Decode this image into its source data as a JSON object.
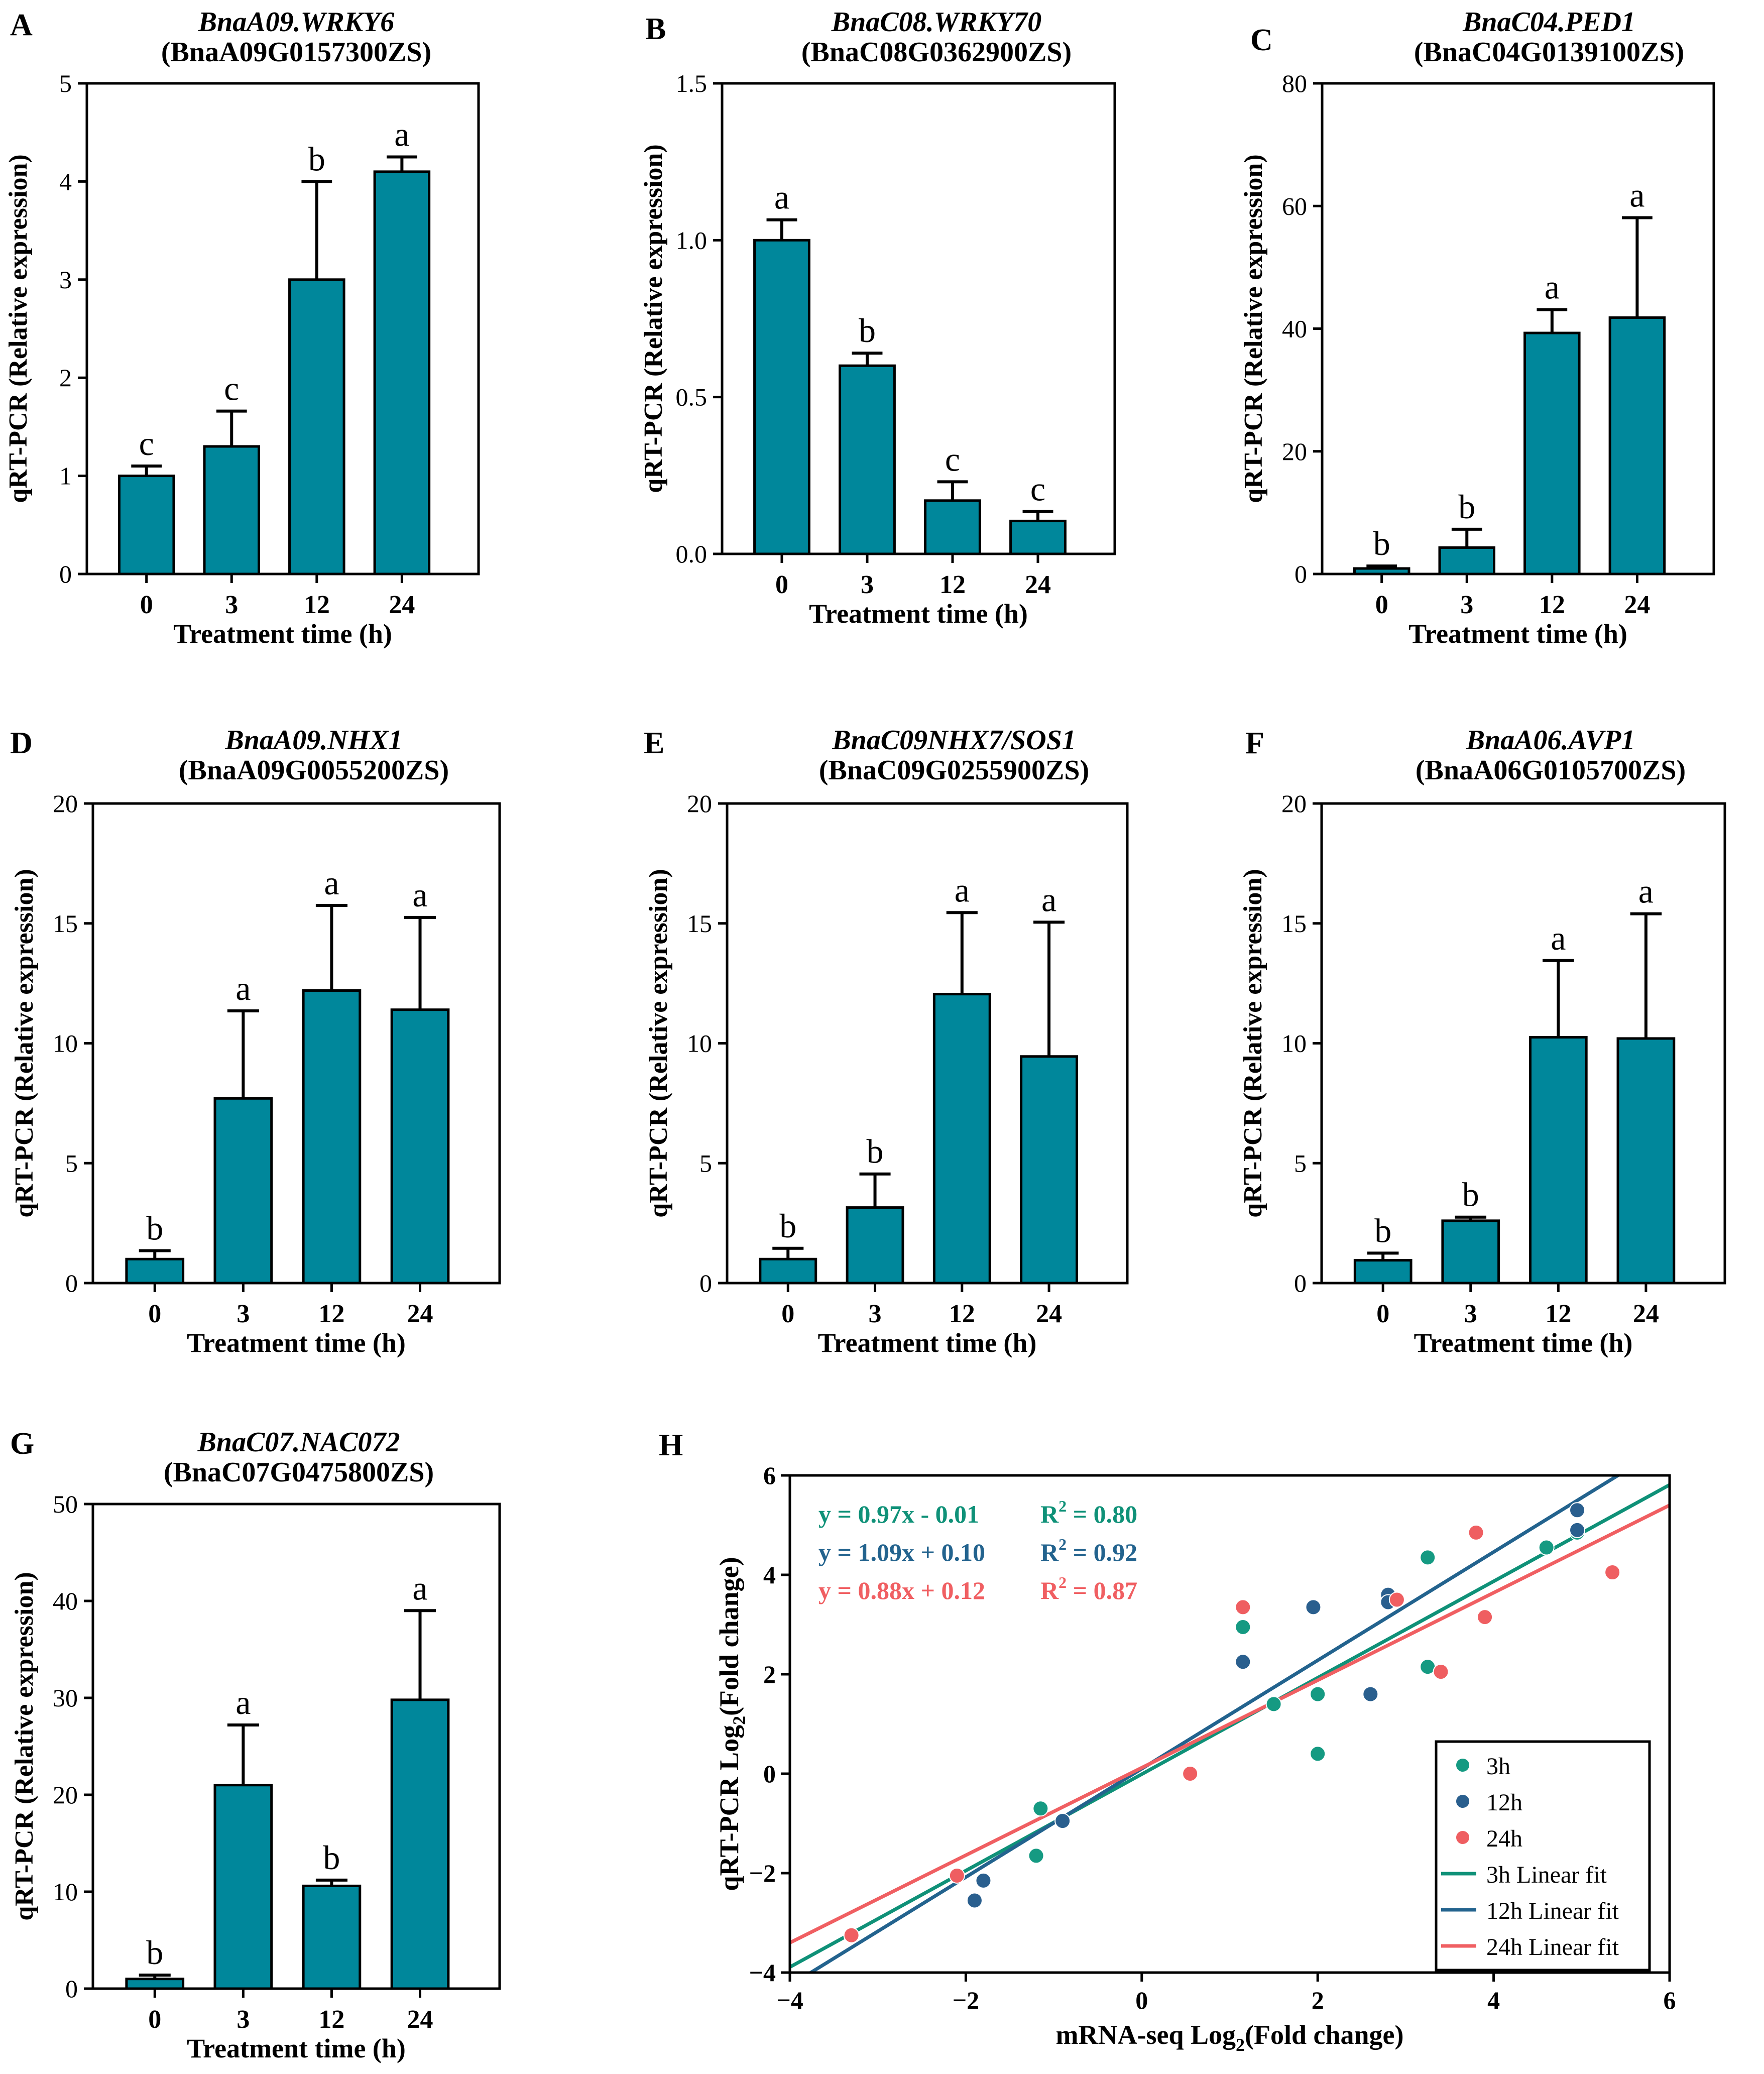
{
  "colors": {
    "bar": "#00879b",
    "axis": "#000000",
    "fit_3h": "#0f9178",
    "fit_12h": "#23638e",
    "fit_24h": "#f05f62",
    "point_3h": "#159a82",
    "point_12h": "#2a5f8e",
    "point_24h": "#ef5e61"
  },
  "chart_data": [
    {
      "panel": "A",
      "type": "bar",
      "title": "BnaA09.WRKY6",
      "subtitle": "(BnaA09G0157300ZS)",
      "xlabel": "Treatment time (h)",
      "ylabel": "qRT-PCR (Relative expression)",
      "categories": [
        "0",
        "3",
        "12",
        "24"
      ],
      "values": [
        1.0,
        1.3,
        3.0,
        4.1
      ],
      "errors": [
        0.1,
        0.36,
        1.0,
        0.15
      ],
      "letters": [
        "c",
        "c",
        "b",
        "a"
      ],
      "ylim": [
        0,
        5
      ],
      "yticks": [
        "0",
        "1",
        "2",
        "3",
        "4",
        "5"
      ]
    },
    {
      "panel": "B",
      "type": "bar",
      "title": "BnaC08.WRKY70",
      "subtitle": "(BnaC08G0362900ZS)",
      "xlabel": "Treatment time (h)",
      "ylabel": "qRT-PCR (Relative expression)",
      "categories": [
        "0",
        "3",
        "12",
        "24"
      ],
      "values": [
        1.0,
        0.6,
        0.17,
        0.105
      ],
      "errors": [
        0.065,
        0.04,
        0.06,
        0.03
      ],
      "letters": [
        "a",
        "b",
        "c",
        "c"
      ],
      "ylim": [
        0,
        1.5
      ],
      "yticks": [
        "0.0",
        "0.5",
        "1.0",
        "1.5"
      ]
    },
    {
      "panel": "C",
      "type": "bar",
      "title": "BnaC04.PED1",
      "subtitle": "(BnaC04G0139100ZS)",
      "xlabel": "Treatment time (h)",
      "ylabel": "qRT-PCR (Relative expression)",
      "categories": [
        "0",
        "3",
        "12",
        "24"
      ],
      "values": [
        0.9,
        4.3,
        39.3,
        41.8
      ],
      "errors": [
        0.4,
        3.0,
        3.8,
        16.3
      ],
      "letters": [
        "b",
        "b",
        "a",
        "a"
      ],
      "ylim": [
        0,
        80
      ],
      "yticks": [
        "0",
        "20",
        "40",
        "60",
        "80"
      ]
    },
    {
      "panel": "D",
      "type": "bar",
      "title": "BnaA09.NHX1",
      "subtitle": "(BnaA09G0055200ZS)",
      "xlabel": "Treatment time (h)",
      "ylabel": "qRT-PCR (Relative expression)",
      "categories": [
        "0",
        "3",
        "12",
        "24"
      ],
      "values": [
        1.0,
        7.7,
        12.2,
        11.4
      ],
      "errors": [
        0.35,
        3.65,
        3.55,
        3.85
      ],
      "letters": [
        "b",
        "a",
        "a",
        "a"
      ],
      "ylim": [
        0,
        20
      ],
      "yticks": [
        "0",
        "5",
        "10",
        "15",
        "20"
      ]
    },
    {
      "panel": "E",
      "type": "bar",
      "title": "BnaC09NHX7/SOS1",
      "subtitle": "(BnaC09G0255900ZS)",
      "xlabel": "Treatment time (h)",
      "ylabel": "qRT-PCR (Relative expression)",
      "categories": [
        "0",
        "3",
        "12",
        "24"
      ],
      "values": [
        1.0,
        3.15,
        12.05,
        9.45
      ],
      "errors": [
        0.45,
        1.4,
        3.4,
        5.6
      ],
      "letters": [
        "b",
        "b",
        "a",
        "a"
      ],
      "ylim": [
        0,
        20
      ],
      "yticks": [
        "0",
        "5",
        "10",
        "15",
        "20"
      ]
    },
    {
      "panel": "F",
      "type": "bar",
      "title": "BnaA06.AVP1",
      "subtitle": "(BnaA06G0105700ZS)",
      "xlabel": "Treatment time (h)",
      "ylabel": "qRT-PCR (Relative expression)",
      "categories": [
        "0",
        "3",
        "12",
        "24"
      ],
      "values": [
        0.95,
        2.6,
        10.25,
        10.2
      ],
      "errors": [
        0.3,
        0.15,
        3.2,
        5.2
      ],
      "letters": [
        "b",
        "b",
        "a",
        "a"
      ],
      "ylim": [
        0,
        20
      ],
      "yticks": [
        "0",
        "5",
        "10",
        "15",
        "20"
      ]
    },
    {
      "panel": "G",
      "type": "bar",
      "title": "BnaC07.NAC072",
      "subtitle": "(BnaC07G0475800ZS)",
      "xlabel": "Treatment time (h)",
      "ylabel": "qRT-PCR (Relative expression)",
      "categories": [
        "0",
        "3",
        "12",
        "24"
      ],
      "values": [
        1.0,
        21.0,
        10.6,
        29.8
      ],
      "errors": [
        0.4,
        6.2,
        0.6,
        9.2
      ],
      "letters": [
        "b",
        "a",
        "b",
        "a"
      ],
      "ylim": [
        0,
        50
      ],
      "yticks": [
        "0",
        "10",
        "20",
        "30",
        "40",
        "50"
      ]
    },
    {
      "panel": "H",
      "type": "scatter",
      "xlabel": "mRNA-seq Log",
      "xlabel_sub": "2",
      "xlabel_tail": "(Fold change)",
      "ylabel": "qRT-PCR Log",
      "ylabel_sub": "2",
      "ylabel_tail": "(Fold change)",
      "xlim": [
        -4,
        6
      ],
      "ylim": [
        -4,
        6
      ],
      "xticks": [
        "−4",
        "−2",
        "0",
        "2",
        "4",
        "6"
      ],
      "yticks": [
        "−4",
        "−2",
        "0",
        "2",
        "4",
        "6"
      ],
      "equations": [
        {
          "eq": "y = 0.97x - 0.01",
          "r2": "= 0.80"
        },
        {
          "eq": "y = 1.09x + 0.10",
          "r2": "= 0.92"
        },
        {
          "eq": "y = 0.88x + 0.12",
          "r2": "= 0.87"
        }
      ],
      "r2_label": "R",
      "r2_sup": "2",
      "legend": [
        "3h",
        "12h",
        "24h",
        "3h Linear fit",
        "12h Linear fit",
        "24h Linear fit"
      ],
      "legend_position": "bottom-right",
      "series": [
        {
          "name": "3h",
          "slope": 0.97,
          "intercept": -0.01,
          "x": [
            -3.3,
            -1.15,
            -0.9,
            -1.2,
            1.15,
            1.5,
            2.0,
            2.0,
            3.25,
            3.25,
            4.6,
            4.95
          ],
          "y": [
            -3.25,
            -0.7,
            -0.95,
            -1.65,
            2.95,
            1.4,
            1.6,
            0.4,
            2.15,
            4.35,
            4.55,
            4.85
          ]
        },
        {
          "name": "12h",
          "slope": 1.09,
          "intercept": 0.1,
          "x": [
            -1.8,
            -1.9,
            -0.9,
            1.15,
            1.95,
            2.6,
            2.8,
            2.8,
            4.95,
            4.95
          ],
          "y": [
            -2.15,
            -2.55,
            -0.95,
            2.25,
            3.35,
            1.6,
            3.6,
            3.45,
            5.3,
            4.9
          ]
        },
        {
          "name": "24h",
          "slope": 0.88,
          "intercept": 0.12,
          "x": [
            -3.3,
            -2.1,
            0.55,
            1.15,
            2.9,
            3.4,
            3.8,
            3.9,
            5.35
          ],
          "y": [
            -3.25,
            -2.05,
            0.0,
            3.35,
            3.5,
            2.05,
            4.85,
            3.15,
            4.05
          ]
        }
      ]
    }
  ]
}
